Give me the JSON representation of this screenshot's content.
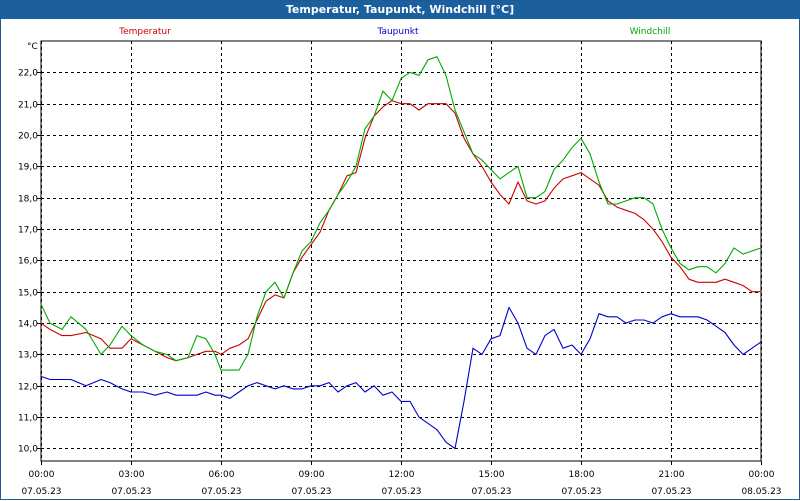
{
  "window": {
    "title": "Temperatur, Taupunkt, Windchill [°C]"
  },
  "chart_data": {
    "type": "line",
    "title": "Temperatur, Taupunkt, Windchill [°C]",
    "ylabel": "°C",
    "xlabel": "",
    "ylim": [
      9.6,
      23.0
    ],
    "xlim": [
      0,
      24
    ],
    "grid": true,
    "legend_placement": "top",
    "y_ticks": [
      "10,0",
      "11,0",
      "12,0",
      "13,0",
      "14,0",
      "15,0",
      "16,0",
      "17,0",
      "18,0",
      "19,0",
      "20,0",
      "21,0",
      "22,0"
    ],
    "x_ticks": [
      {
        "time": "00:00",
        "date": "07.05.23"
      },
      {
        "time": "03:00",
        "date": "07.05.23"
      },
      {
        "time": "06:00",
        "date": "07.05.23"
      },
      {
        "time": "09:00",
        "date": "07.05.23"
      },
      {
        "time": "12:00",
        "date": "07.05.23"
      },
      {
        "time": "15:00",
        "date": "07.05.23"
      },
      {
        "time": "18:00",
        "date": "07.05.23"
      },
      {
        "time": "21:00",
        "date": "07.05.23"
      },
      {
        "time": "00:00",
        "date": "08.05.23"
      }
    ],
    "series": [
      {
        "name": "Temperatur",
        "color": "#cc0000",
        "x": [
          0,
          0.3,
          0.7,
          1.0,
          1.5,
          2.0,
          2.3,
          2.7,
          3.0,
          3.4,
          3.8,
          4.2,
          4.5,
          4.9,
          5.2,
          5.5,
          5.8,
          6.0,
          6.3,
          6.6,
          6.9,
          7.2,
          7.5,
          7.8,
          8.1,
          8.4,
          8.7,
          9.0,
          9.3,
          9.6,
          9.9,
          10.2,
          10.5,
          10.8,
          11.1,
          11.4,
          11.7,
          12.0,
          12.3,
          12.6,
          12.9,
          13.2,
          13.5,
          13.8,
          14.1,
          14.4,
          14.7,
          15.0,
          15.3,
          15.6,
          15.9,
          16.2,
          16.5,
          16.8,
          17.1,
          17.4,
          17.7,
          18.0,
          18.3,
          18.6,
          18.9,
          19.2,
          19.5,
          19.8,
          20.1,
          20.4,
          20.7,
          21.0,
          21.3,
          21.6,
          21.9,
          22.2,
          22.5,
          22.8,
          23.1,
          23.4,
          23.7,
          24.0
        ],
        "y": [
          14.0,
          13.8,
          13.6,
          13.6,
          13.7,
          13.5,
          13.2,
          13.2,
          13.5,
          13.3,
          13.1,
          12.9,
          12.8,
          12.9,
          13.0,
          13.1,
          13.1,
          13.0,
          13.2,
          13.3,
          13.5,
          14.1,
          14.7,
          14.9,
          14.8,
          15.6,
          16.1,
          16.5,
          16.9,
          17.6,
          18.1,
          18.7,
          18.8,
          19.9,
          20.6,
          20.9,
          21.1,
          21.0,
          21.0,
          20.8,
          21.0,
          21.0,
          21.0,
          20.7,
          19.9,
          19.4,
          19.0,
          18.5,
          18.1,
          17.8,
          18.5,
          17.9,
          17.8,
          17.9,
          18.3,
          18.6,
          18.7,
          18.8,
          18.6,
          18.4,
          17.9,
          17.7,
          17.6,
          17.5,
          17.3,
          17.0,
          16.6,
          16.1,
          15.8,
          15.4,
          15.3,
          15.3,
          15.3,
          15.4,
          15.3,
          15.2,
          15.0,
          15.0
        ]
      },
      {
        "name": "Taupunkt",
        "color": "#0000cc",
        "x": [
          0,
          0.3,
          0.7,
          1.0,
          1.5,
          2.0,
          2.3,
          2.7,
          3.0,
          3.4,
          3.8,
          4.2,
          4.5,
          4.9,
          5.2,
          5.5,
          5.8,
          6.0,
          6.3,
          6.6,
          6.9,
          7.2,
          7.5,
          7.8,
          8.1,
          8.4,
          8.7,
          9.0,
          9.3,
          9.6,
          9.9,
          10.2,
          10.5,
          10.8,
          11.1,
          11.4,
          11.7,
          12.0,
          12.3,
          12.6,
          12.9,
          13.2,
          13.5,
          13.8,
          14.1,
          14.4,
          14.7,
          15.0,
          15.3,
          15.6,
          15.9,
          16.2,
          16.5,
          16.8,
          17.1,
          17.4,
          17.7,
          18.0,
          18.3,
          18.6,
          18.9,
          19.2,
          19.5,
          19.8,
          20.1,
          20.4,
          20.7,
          21.0,
          21.3,
          21.6,
          21.9,
          22.2,
          22.5,
          22.8,
          23.1,
          23.4,
          23.7,
          24.0
        ],
        "y": [
          12.3,
          12.2,
          12.2,
          12.2,
          12.0,
          12.2,
          12.1,
          11.9,
          11.8,
          11.8,
          11.7,
          11.8,
          11.7,
          11.7,
          11.7,
          11.8,
          11.7,
          11.7,
          11.6,
          11.8,
          12.0,
          12.1,
          12.0,
          11.9,
          12.0,
          11.9,
          11.9,
          12.0,
          12.0,
          12.1,
          11.8,
          12.0,
          12.1,
          11.8,
          12.0,
          11.7,
          11.8,
          11.5,
          11.5,
          11.0,
          10.8,
          10.6,
          10.2,
          10.0,
          11.5,
          13.2,
          13.0,
          13.5,
          13.6,
          14.5,
          14.0,
          13.2,
          13.0,
          13.6,
          13.8,
          13.2,
          13.3,
          13.0,
          13.5,
          14.3,
          14.2,
          14.2,
          14.0,
          14.1,
          14.1,
          14.0,
          14.2,
          14.3,
          14.2,
          14.2,
          14.2,
          14.1,
          13.9,
          13.7,
          13.3,
          13.0,
          13.2,
          13.4
        ]
      },
      {
        "name": "Windchill",
        "color": "#00aa00",
        "x": [
          0,
          0.3,
          0.7,
          1.0,
          1.5,
          2.0,
          2.3,
          2.7,
          3.0,
          3.4,
          3.8,
          4.2,
          4.5,
          4.9,
          5.2,
          5.5,
          5.8,
          6.0,
          6.3,
          6.6,
          6.9,
          7.2,
          7.5,
          7.8,
          8.1,
          8.4,
          8.7,
          9.0,
          9.3,
          9.6,
          9.9,
          10.2,
          10.5,
          10.8,
          11.1,
          11.4,
          11.7,
          12.0,
          12.3,
          12.6,
          12.9,
          13.2,
          13.5,
          13.8,
          14.1,
          14.4,
          14.7,
          15.0,
          15.3,
          15.6,
          15.9,
          16.2,
          16.5,
          16.8,
          17.1,
          17.4,
          17.7,
          18.0,
          18.3,
          18.6,
          18.9,
          19.2,
          19.5,
          19.8,
          20.1,
          20.4,
          20.7,
          21.0,
          21.3,
          21.6,
          21.9,
          22.2,
          22.5,
          22.8,
          23.1,
          23.4,
          23.7,
          24.0
        ],
        "y": [
          14.6,
          14.0,
          13.8,
          14.2,
          13.8,
          13.0,
          13.3,
          13.9,
          13.6,
          13.3,
          13.1,
          13.0,
          12.8,
          12.9,
          13.6,
          13.5,
          13.0,
          12.5,
          12.5,
          12.5,
          13.0,
          14.2,
          15.0,
          15.3,
          14.8,
          15.6,
          16.3,
          16.6,
          17.2,
          17.6,
          18.1,
          18.5,
          19.0,
          20.2,
          20.6,
          21.4,
          21.1,
          21.8,
          22.0,
          21.9,
          22.4,
          22.5,
          21.9,
          20.8,
          20.1,
          19.4,
          19.2,
          18.9,
          18.6,
          18.8,
          19.0,
          18.0,
          18.0,
          18.2,
          18.9,
          19.2,
          19.6,
          19.9,
          19.4,
          18.5,
          17.8,
          17.8,
          17.9,
          18.0,
          18.0,
          17.8,
          17.0,
          16.4,
          15.9,
          15.7,
          15.8,
          15.8,
          15.6,
          15.9,
          16.4,
          16.2,
          16.3,
          16.4
        ]
      }
    ]
  }
}
